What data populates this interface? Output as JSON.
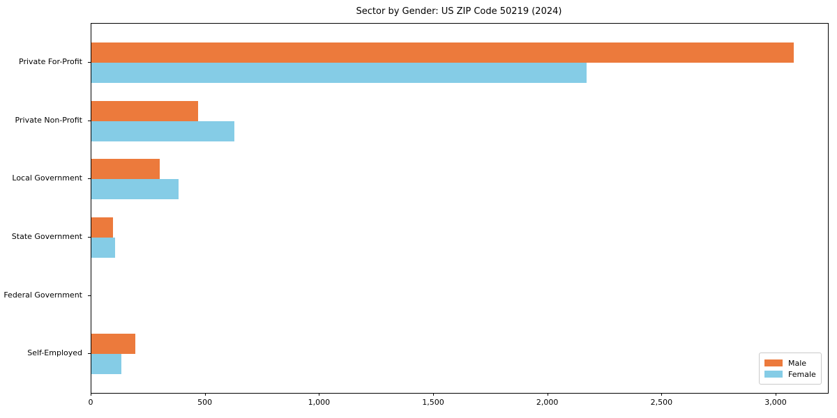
{
  "title": "Sector by Gender: US ZIP Code 50219 (2024)",
  "colors": {
    "male": "#ec7a3c",
    "female": "#85cce6",
    "axis": "#000000",
    "background": "#ffffff",
    "legend_border": "#c9c9c9"
  },
  "legend": {
    "position": "lower right",
    "items": [
      {
        "label": "Male",
        "color": "#ec7a3c"
      },
      {
        "label": "Female",
        "color": "#85cce6"
      }
    ]
  },
  "chart_data": {
    "type": "bar",
    "orientation": "horizontal",
    "title": "Sector by Gender: US ZIP Code 50219 (2024)",
    "categories": [
      "Private For-Profit",
      "Private Non-Profit",
      "Local Government",
      "State Government",
      "Federal Government",
      "Self-Employed"
    ],
    "series": [
      {
        "name": "Male",
        "color": "#ec7a3c",
        "values": [
          3075,
          468,
          299,
          96,
          0,
          193
        ]
      },
      {
        "name": "Female",
        "color": "#85cce6",
        "values": [
          2170,
          627,
          382,
          105,
          0,
          132
        ]
      }
    ],
    "xlabel": "",
    "ylabel": "",
    "x_ticks": [
      0,
      500,
      1000,
      1500,
      2000,
      2500,
      3000
    ],
    "x_tick_labels": [
      "0",
      "500",
      "1,000",
      "1,500",
      "2,000",
      "2,500",
      "3,000"
    ],
    "xlim": [
      0,
      3226
    ],
    "grid": false,
    "legend_position": "lower right"
  }
}
